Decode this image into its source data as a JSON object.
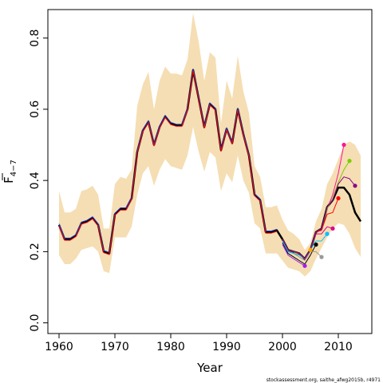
{
  "chart_data": {
    "type": "line",
    "xlabel": "Year",
    "ylabel_bar": "F",
    "ylabel_sub": "4−7",
    "xlim": [
      1958,
      2016
    ],
    "ylim": [
      -0.03,
      0.88
    ],
    "xticks": [
      1960,
      1970,
      1980,
      1990,
      2000,
      2010
    ],
    "xtick_labels": [
      "1960",
      "1970",
      "1980",
      "1990",
      "2000",
      "2010"
    ],
    "yticks": [
      0.0,
      0.2,
      0.4,
      0.6,
      0.8
    ],
    "ytick_labels": [
      "0.0",
      "0.2",
      "0.4",
      "0.6",
      "0.8"
    ],
    "credit": "stockassessment.org, saithe_afwg2015b, r4971",
    "band_color": "#F5DEB3",
    "band_years": [
      1960,
      1961,
      1962,
      1963,
      1964,
      1965,
      1966,
      1967,
      1968,
      1969,
      1970,
      1971,
      1972,
      1973,
      1974,
      1975,
      1976,
      1977,
      1978,
      1979,
      1980,
      1981,
      1982,
      1983,
      1984,
      1985,
      1986,
      1987,
      1988,
      1989,
      1990,
      1991,
      1992,
      1993,
      1994,
      1995,
      1996,
      1997,
      1998,
      1999,
      2000,
      2001,
      2002,
      2003,
      2004,
      2005,
      2006,
      2007,
      2008,
      2009,
      2010,
      2011,
      2012,
      2013,
      2014
    ],
    "band_upper": [
      0.37,
      0.31,
      0.31,
      0.32,
      0.37,
      0.375,
      0.385,
      0.36,
      0.265,
      0.265,
      0.39,
      0.41,
      0.405,
      0.43,
      0.61,
      0.67,
      0.705,
      0.6,
      0.68,
      0.72,
      0.7,
      0.7,
      0.695,
      0.74,
      0.87,
      0.79,
      0.68,
      0.76,
      0.745,
      0.56,
      0.68,
      0.63,
      0.75,
      0.65,
      0.59,
      0.44,
      0.41,
      0.325,
      0.325,
      0.33,
      0.29,
      0.26,
      0.25,
      0.235,
      0.205,
      0.225,
      0.285,
      0.32,
      0.39,
      0.42,
      0.46,
      0.5,
      0.51,
      0.5,
      0.47
    ],
    "band_lower": [
      0.19,
      0.165,
      0.165,
      0.18,
      0.205,
      0.21,
      0.215,
      0.2,
      0.145,
      0.14,
      0.24,
      0.24,
      0.24,
      0.27,
      0.36,
      0.42,
      0.44,
      0.385,
      0.43,
      0.46,
      0.44,
      0.435,
      0.43,
      0.47,
      0.55,
      0.48,
      0.425,
      0.48,
      0.465,
      0.37,
      0.42,
      0.395,
      0.47,
      0.4,
      0.365,
      0.28,
      0.265,
      0.195,
      0.195,
      0.195,
      0.175,
      0.155,
      0.15,
      0.145,
      0.13,
      0.145,
      0.18,
      0.21,
      0.24,
      0.265,
      0.28,
      0.275,
      0.25,
      0.21,
      0.185
    ],
    "series": [
      {
        "color": "#000000",
        "width": 2.5,
        "years": [
          1960,
          1961,
          1962,
          1963,
          1964,
          1965,
          1966,
          1967,
          1968,
          1969,
          1970,
          1971,
          1972,
          1973,
          1974,
          1975,
          1976,
          1977,
          1978,
          1979,
          1980,
          1981,
          1982,
          1983,
          1984,
          1985,
          1986,
          1987,
          1988,
          1989,
          1990,
          1991,
          1992,
          1993,
          1994,
          1995,
          1996,
          1997,
          1998,
          1999,
          2000,
          2001,
          2002,
          2003,
          2004,
          2005,
          2006,
          2007,
          2008,
          2009,
          2010,
          2011,
          2012,
          2013,
          2014
        ],
        "values": [
          0.275,
          0.235,
          0.235,
          0.245,
          0.28,
          0.285,
          0.295,
          0.275,
          0.2,
          0.195,
          0.305,
          0.32,
          0.32,
          0.35,
          0.48,
          0.54,
          0.565,
          0.5,
          0.55,
          0.58,
          0.56,
          0.555,
          0.555,
          0.6,
          0.71,
          0.63,
          0.55,
          0.615,
          0.6,
          0.485,
          0.545,
          0.505,
          0.6,
          0.53,
          0.47,
          0.36,
          0.345,
          0.255,
          0.255,
          0.26,
          0.235,
          0.205,
          0.2,
          0.195,
          0.18,
          0.205,
          0.255,
          0.265,
          0.325,
          0.345,
          0.38,
          0.38,
          0.36,
          0.31,
          0.285
        ],
        "end_dot": false
      },
      {
        "color": "#000000",
        "width": 1,
        "years": [
          2000,
          2001,
          2002,
          2003,
          2004,
          2005,
          2006
        ],
        "values": [
          0.225,
          0.195,
          0.185,
          0.175,
          0.165,
          0.19,
          0.22
        ],
        "end_dot": true
      },
      {
        "color": "#A020F0",
        "width": 1,
        "years": [
          2000,
          2001,
          2002,
          2003,
          2004
        ],
        "values": [
          0.22,
          0.19,
          0.18,
          0.17,
          0.16
        ],
        "end_dot": true
      },
      {
        "color": "#FFA500",
        "width": 1,
        "years": [
          2000,
          2001,
          2002,
          2003,
          2004,
          2005
        ],
        "values": [
          0.235,
          0.205,
          0.2,
          0.19,
          0.18,
          0.205
        ],
        "end_dot": true
      },
      {
        "color": "#999999",
        "width": 1,
        "years": [
          2000,
          2001,
          2002,
          2003,
          2004,
          2005,
          2006,
          2007
        ],
        "values": [
          0.23,
          0.2,
          0.195,
          0.185,
          0.175,
          0.2,
          0.2,
          0.185
        ],
        "end_dot": true
      },
      {
        "color": "#00BFFF",
        "width": 1,
        "years": [
          2000,
          2001,
          2002,
          2003,
          2004,
          2005,
          2006,
          2007,
          2008
        ],
        "values": [
          0.23,
          0.2,
          0.195,
          0.19,
          0.18,
          0.205,
          0.23,
          0.23,
          0.25
        ],
        "end_dot": true
      },
      {
        "color": "#E0008A",
        "width": 1,
        "years": [
          2000,
          2001,
          2002,
          2003,
          2004,
          2005,
          2006,
          2007,
          2008,
          2009
        ],
        "values": [
          0.235,
          0.205,
          0.2,
          0.195,
          0.18,
          0.205,
          0.25,
          0.25,
          0.27,
          0.265
        ],
        "end_dot": true
      },
      {
        "color": "#FF0000",
        "width": 1,
        "years": [
          2000,
          2001,
          2002,
          2003,
          2004,
          2005,
          2006,
          2007,
          2008,
          2009,
          2010
        ],
        "values": [
          0.235,
          0.205,
          0.2,
          0.195,
          0.18,
          0.205,
          0.255,
          0.26,
          0.305,
          0.31,
          0.35
        ],
        "end_dot": true
      },
      {
        "color": "#FF1493",
        "width": 1,
        "years": [
          2000,
          2001,
          2002,
          2003,
          2004,
          2005,
          2006,
          2007,
          2008,
          2009,
          2010,
          2011
        ],
        "values": [
          0.235,
          0.205,
          0.2,
          0.195,
          0.18,
          0.205,
          0.255,
          0.265,
          0.32,
          0.36,
          0.42,
          0.5
        ],
        "end_dot": true
      },
      {
        "color": "#7CCD00",
        "width": 1,
        "years": [
          2000,
          2001,
          2002,
          2003,
          2004,
          2005,
          2006,
          2007,
          2008,
          2009,
          2010,
          2011,
          2012
        ],
        "values": [
          0.235,
          0.205,
          0.2,
          0.195,
          0.18,
          0.205,
          0.255,
          0.265,
          0.32,
          0.35,
          0.395,
          0.43,
          0.455
        ],
        "end_dot": true
      },
      {
        "color": "#8B008B",
        "width": 1,
        "years": [
          2000,
          2001,
          2002,
          2003,
          2004,
          2005,
          2006,
          2007,
          2008,
          2009,
          2010,
          2011,
          2012,
          2013
        ],
        "values": [
          0.235,
          0.205,
          0.2,
          0.195,
          0.18,
          0.205,
          0.255,
          0.265,
          0.325,
          0.345,
          0.39,
          0.41,
          0.405,
          0.385
        ],
        "end_dot": true
      },
      {
        "color": "#1F3BC1",
        "width": 1,
        "years": [
          1960,
          1961,
          1962,
          1963,
          1964,
          1965,
          1966,
          1967,
          1968,
          1969,
          1970,
          1971,
          1972,
          1973,
          1974,
          1975,
          1976,
          1977,
          1978,
          1979,
          1980,
          1981,
          1982,
          1983,
          1984,
          1985,
          1986,
          1987,
          1988,
          1989,
          1990,
          1991,
          1992,
          1993,
          1994,
          1995,
          1996,
          1997,
          1998,
          1999
        ],
        "values": [
          0.278,
          0.238,
          0.238,
          0.248,
          0.283,
          0.288,
          0.298,
          0.278,
          0.203,
          0.198,
          0.308,
          0.323,
          0.323,
          0.353,
          0.483,
          0.543,
          0.568,
          0.503,
          0.553,
          0.583,
          0.563,
          0.558,
          0.558,
          0.603,
          0.713,
          0.633,
          0.553,
          0.618,
          0.603,
          0.488,
          0.548,
          0.508,
          0.603,
          0.533,
          0.473,
          0.363,
          0.348,
          0.258,
          0.258,
          0.263
        ],
        "end_dot": false
      },
      {
        "color": "#FF0000",
        "width": 1,
        "years": [
          1960,
          1961,
          1962,
          1963,
          1964,
          1965,
          1966,
          1967,
          1968,
          1969,
          1970,
          1971,
          1972,
          1973,
          1974,
          1975,
          1976,
          1977,
          1978,
          1979,
          1980,
          1981,
          1982,
          1983,
          1984,
          1985,
          1986,
          1987,
          1988,
          1989,
          1990,
          1991,
          1992,
          1993,
          1994,
          1995,
          1996,
          1997,
          1998,
          1999
        ],
        "values": [
          0.272,
          0.232,
          0.232,
          0.242,
          0.277,
          0.282,
          0.292,
          0.272,
          0.197,
          0.192,
          0.302,
          0.317,
          0.317,
          0.347,
          0.477,
          0.537,
          0.562,
          0.497,
          0.547,
          0.577,
          0.557,
          0.552,
          0.552,
          0.597,
          0.707,
          0.627,
          0.547,
          0.612,
          0.597,
          0.482,
          0.542,
          0.502,
          0.597,
          0.527,
          0.467,
          0.357,
          0.342,
          0.252,
          0.252,
          0.257
        ],
        "end_dot": false
      }
    ]
  }
}
